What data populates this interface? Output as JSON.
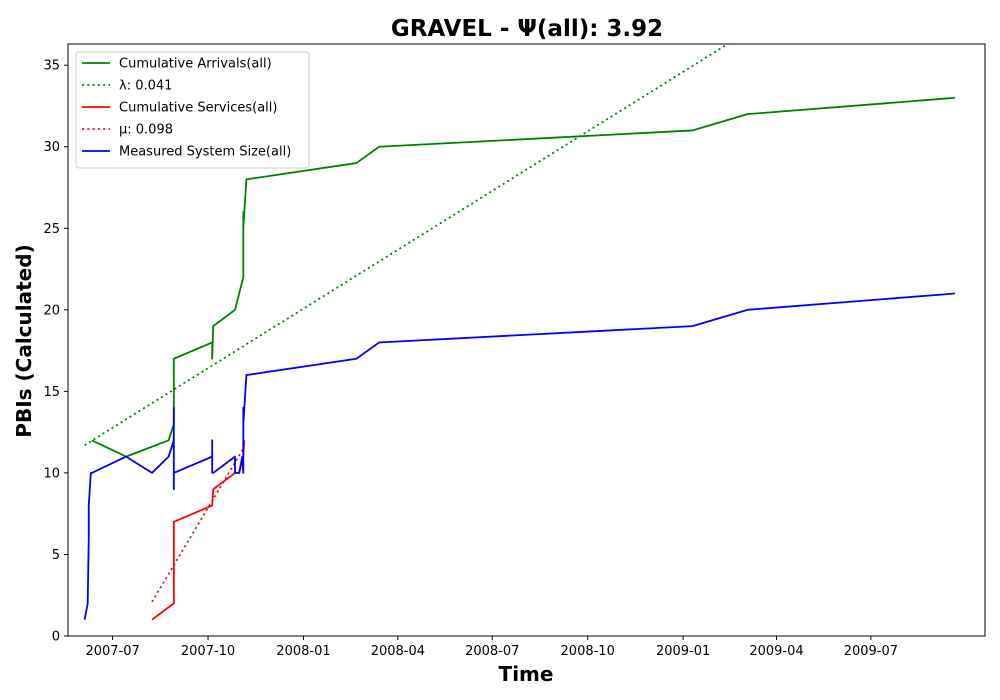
{
  "chart_data": {
    "type": "line",
    "title": "GRAVEL -  Ψ(all): 3.92",
    "xlabel": "Time",
    "ylabel": "PBIs (Calculated)",
    "xlim": [
      "2007-05-19",
      "2009-10-19"
    ],
    "ylim": [
      0,
      36.3
    ],
    "x_ticks": [
      "2007-07-01",
      "2007-10-01",
      "2008-01-01",
      "2008-04-01",
      "2008-07-01",
      "2008-10-01",
      "2009-01-01",
      "2009-04-01",
      "2009-07-01"
    ],
    "x_tick_labels": [
      "2007-07",
      "2007-10",
      "2008-01",
      "2008-04",
      "2008-07",
      "2008-10",
      "2009-01",
      "2009-04",
      "2009-07"
    ],
    "y_ticks": [
      0,
      5,
      10,
      15,
      20,
      25,
      30,
      35
    ],
    "y_tick_labels": [
      "0",
      "5",
      "10",
      "15",
      "20",
      "25",
      "30",
      "35"
    ],
    "grid": false,
    "legend_position": "top-left",
    "series": [
      {
        "name": "Cumulative Arrivals(all)",
        "color": "#008000",
        "style": "solid",
        "points": [
          [
            "2007-06-11",
            12
          ],
          [
            "2007-07-14",
            11
          ],
          [
            "2007-08-24",
            12
          ],
          [
            "2007-08-29",
            13
          ],
          [
            "2007-08-29",
            17
          ],
          [
            "2007-10-05",
            18
          ],
          [
            "2007-10-05",
            17
          ],
          [
            "2007-10-06",
            19
          ],
          [
            "2007-10-27",
            20
          ],
          [
            "2007-10-31",
            21
          ],
          [
            "2007-11-04",
            22
          ],
          [
            "2007-11-04",
            25
          ],
          [
            "2007-11-04",
            26
          ],
          [
            "2007-11-04",
            25
          ],
          [
            "2007-11-06",
            27
          ],
          [
            "2007-11-07",
            28
          ],
          [
            "2008-02-21",
            29
          ],
          [
            "2008-03-14",
            30
          ],
          [
            "2009-01-10",
            31
          ],
          [
            "2009-03-04",
            32
          ],
          [
            "2009-09-20",
            33
          ]
        ]
      },
      {
        "name": "λ: 0.041",
        "color": "#008000",
        "style": "dotted",
        "points": [
          [
            "2007-06-04",
            11.7
          ],
          [
            "2009-02-13",
            36.3
          ]
        ]
      },
      {
        "name": "Cumulative Services(all)",
        "color": "#ff0000",
        "style": "solid",
        "points": [
          [
            "2007-08-08",
            1
          ],
          [
            "2007-08-29",
            2
          ],
          [
            "2007-08-29",
            7
          ],
          [
            "2007-10-05",
            8
          ],
          [
            "2007-10-06",
            9
          ],
          [
            "2007-10-27",
            10
          ],
          [
            "2007-10-31",
            10
          ],
          [
            "2007-11-04",
            11
          ],
          [
            "2007-11-05",
            12
          ]
        ]
      },
      {
        "name": "μ: 0.098",
        "color": "#ff0000",
        "style": "dotted",
        "points": [
          [
            "2007-08-08",
            2.1
          ],
          [
            "2007-11-05",
            11.6
          ]
        ]
      },
      {
        "name": "Measured System Size(all)",
        "color": "#0000ff",
        "style": "solid",
        "points": [
          [
            "2007-06-04",
            1
          ],
          [
            "2007-06-07",
            2
          ],
          [
            "2007-06-08",
            6
          ],
          [
            "2007-06-08",
            8
          ],
          [
            "2007-06-09",
            9
          ],
          [
            "2007-06-10",
            10
          ],
          [
            "2007-06-11",
            10
          ],
          [
            "2007-07-14",
            11
          ],
          [
            "2007-08-08",
            10
          ],
          [
            "2007-08-24",
            11
          ],
          [
            "2007-08-29",
            12
          ],
          [
            "2007-08-29",
            14
          ],
          [
            "2007-08-29",
            9
          ],
          [
            "2007-08-29",
            10
          ],
          [
            "2007-10-05",
            11
          ],
          [
            "2007-10-05",
            12
          ],
          [
            "2007-10-05",
            10
          ],
          [
            "2007-10-06",
            10
          ],
          [
            "2007-10-27",
            11
          ],
          [
            "2007-10-27",
            10
          ],
          [
            "2007-10-31",
            10
          ],
          [
            "2007-11-03",
            11
          ],
          [
            "2007-11-04",
            10
          ],
          [
            "2007-11-04",
            13
          ],
          [
            "2007-11-04",
            14
          ],
          [
            "2007-11-04",
            13
          ],
          [
            "2007-11-06",
            15
          ],
          [
            "2007-11-07",
            16
          ],
          [
            "2008-02-21",
            17
          ],
          [
            "2008-03-14",
            18
          ],
          [
            "2009-01-10",
            19
          ],
          [
            "2009-03-04",
            20
          ],
          [
            "2009-09-20",
            21
          ]
        ]
      }
    ]
  }
}
